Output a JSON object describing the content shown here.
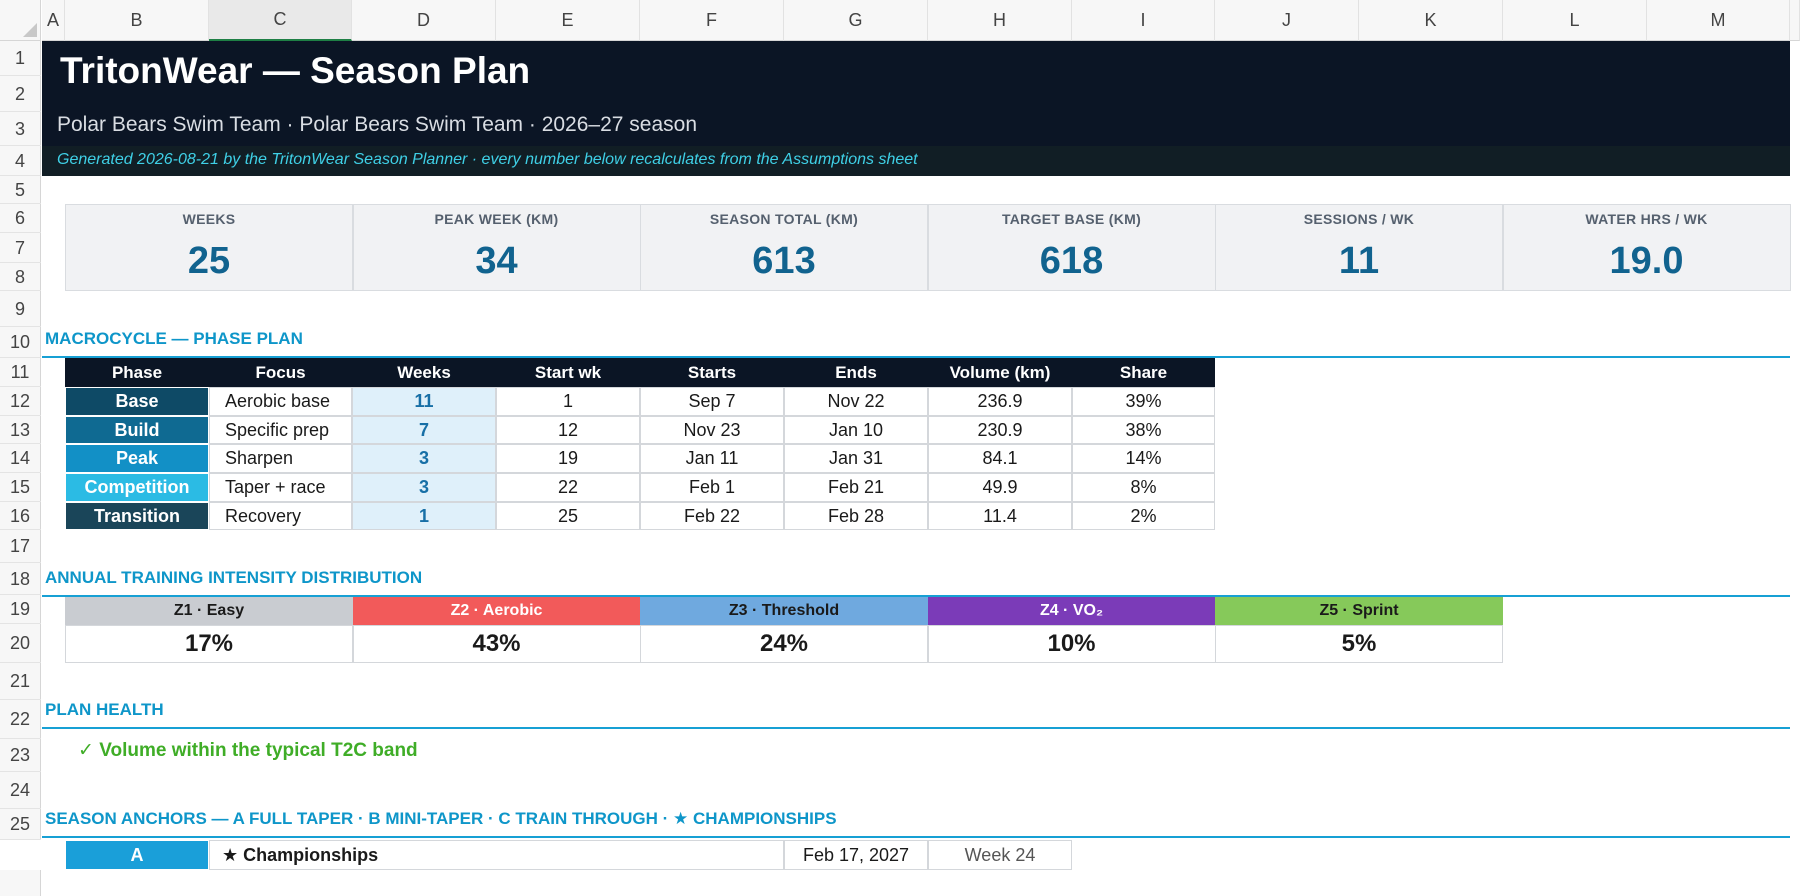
{
  "columns": [
    "A",
    "B",
    "C",
    "D",
    "E",
    "F",
    "G",
    "H",
    "I",
    "J",
    "K",
    "L",
    "M"
  ],
  "rows": [
    "1",
    "2",
    "3",
    "4",
    "5",
    "6",
    "7",
    "8",
    "9",
    "10",
    "11",
    "12",
    "13",
    "14",
    "15",
    "16",
    "17",
    "18",
    "19",
    "20",
    "21",
    "22",
    "23",
    "24",
    "25"
  ],
  "header": {
    "title": "TritonWear — Season Plan",
    "subtitle": "Polar Bears Swim Team · Polar Bears Swim Team · 2026–27 season",
    "note": "Generated 2026-08-21 by the TritonWear Season Planner · every number below recalculates from the Assumptions sheet"
  },
  "kpis": [
    {
      "label": "WEEKS",
      "value": "25"
    },
    {
      "label": "PEAK WEEK (KM)",
      "value": "34"
    },
    {
      "label": "SEASON TOTAL (KM)",
      "value": "613"
    },
    {
      "label": "TARGET BASE (KM)",
      "value": "618"
    },
    {
      "label": "SESSIONS / WK",
      "value": "11"
    },
    {
      "label": "WATER HRS / WK",
      "value": "19.0"
    }
  ],
  "macrocycle": {
    "title": "MACROCYCLE — PHASE PLAN",
    "headers": [
      "Phase",
      "Focus",
      "Weeks",
      "Start wk",
      "Starts",
      "Ends",
      "Volume (km)",
      "Share"
    ],
    "rows": [
      {
        "phase": "Base",
        "focus": "Aerobic base",
        "weeks": "11",
        "start_wk": "1",
        "starts": "Sep 7",
        "ends": "Nov 22",
        "volume": "236.9",
        "share": "39%",
        "color": "#0e4a66"
      },
      {
        "phase": "Build",
        "focus": "Specific prep",
        "weeks": "7",
        "start_wk": "12",
        "starts": "Nov 23",
        "ends": "Jan 10",
        "volume": "230.9",
        "share": "38%",
        "color": "#0f6a92"
      },
      {
        "phase": "Peak",
        "focus": "Sharpen",
        "weeks": "3",
        "start_wk": "19",
        "starts": "Jan 11",
        "ends": "Jan 31",
        "volume": "84.1",
        "share": "14%",
        "color": "#1290c6"
      },
      {
        "phase": "Competition",
        "focus": "Taper + race",
        "weeks": "3",
        "start_wk": "22",
        "starts": "Feb 1",
        "ends": "Feb 21",
        "volume": "49.9",
        "share": "8%",
        "color": "#2bbbe4"
      },
      {
        "phase": "Transition",
        "focus": "Recovery",
        "weeks": "1",
        "start_wk": "25",
        "starts": "Feb 22",
        "ends": "Feb 28",
        "volume": "11.4",
        "share": "2%",
        "color": "#1a4559"
      }
    ]
  },
  "intensity": {
    "title": "ANNUAL TRAINING INTENSITY DISTRIBUTION",
    "zones": [
      {
        "label": "Z1 · Easy",
        "value": "17%",
        "bg": "#c9ccd1",
        "fg": "#1a1a1a"
      },
      {
        "label": "Z2 · Aerobic",
        "value": "43%",
        "bg": "#f25a5a",
        "fg": "#ffffff"
      },
      {
        "label": "Z3 · Threshold",
        "value": "24%",
        "bg": "#6fa9df",
        "fg": "#1a1a1a"
      },
      {
        "label": "Z4 · VO₂",
        "value": "10%",
        "bg": "#7b3bb8",
        "fg": "#ffffff"
      },
      {
        "label": "Z5 · Sprint",
        "value": "5%",
        "bg": "#86c95a",
        "fg": "#1a1a1a"
      }
    ]
  },
  "health": {
    "title": "PLAN HEALTH",
    "message": "✓ Volume within the typical T2C band"
  },
  "anchors": {
    "title": "SEASON ANCHORS — A FULL TAPER · B MINI-TAPER · C TRAIN THROUGH · ★ CHAMPIONSHIPS",
    "rows": [
      {
        "tier": "A",
        "name": "★ Championships",
        "date": "Feb 17, 2027",
        "week": "Week 24"
      }
    ]
  },
  "colors": {
    "accent": "#0e96c9",
    "banner": "#0b1525",
    "kpi_value": "#11638f",
    "health_ok": "#3fad27"
  }
}
